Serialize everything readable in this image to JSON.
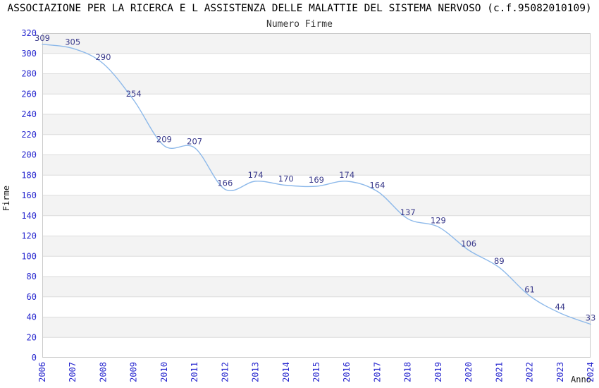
{
  "chart_data": {
    "type": "line",
    "title": "ASSOCIAZIONE PER LA RICERCA E L ASSISTENZA DELLE MALATTIE DEL SISTEMA NERVOSO (c.f.95082010109)",
    "subtitle": "Numero Firme",
    "xlabel": "Anno",
    "ylabel": "Firme",
    "categories": [
      "2006",
      "2007",
      "2008",
      "2009",
      "2010",
      "2011",
      "2012",
      "2013",
      "2014",
      "2015",
      "2016",
      "2017",
      "2018",
      "2019",
      "2020",
      "2021",
      "2022",
      "2023",
      "2024"
    ],
    "series": [
      {
        "name": "Numero Firme",
        "values": [
          309,
          305,
          290,
          254,
          209,
          207,
          166,
          174,
          170,
          169,
          174,
          164,
          137,
          129,
          106,
          89,
          61,
          44,
          33
        ]
      }
    ],
    "ylim": [
      0,
      320
    ],
    "ytick_step": 20,
    "grid": "horizontal-bands",
    "legend": "none",
    "data_labels": true,
    "colors": {
      "line": "#8db9ea",
      "tick_labels": "#2828cf",
      "value_labels": "#38388a",
      "band_fill": "#f3f3f3",
      "gridline": "#dcdcdc",
      "plot_border": "#cacaca",
      "title": "#000000",
      "subtitle": "#333333"
    }
  }
}
